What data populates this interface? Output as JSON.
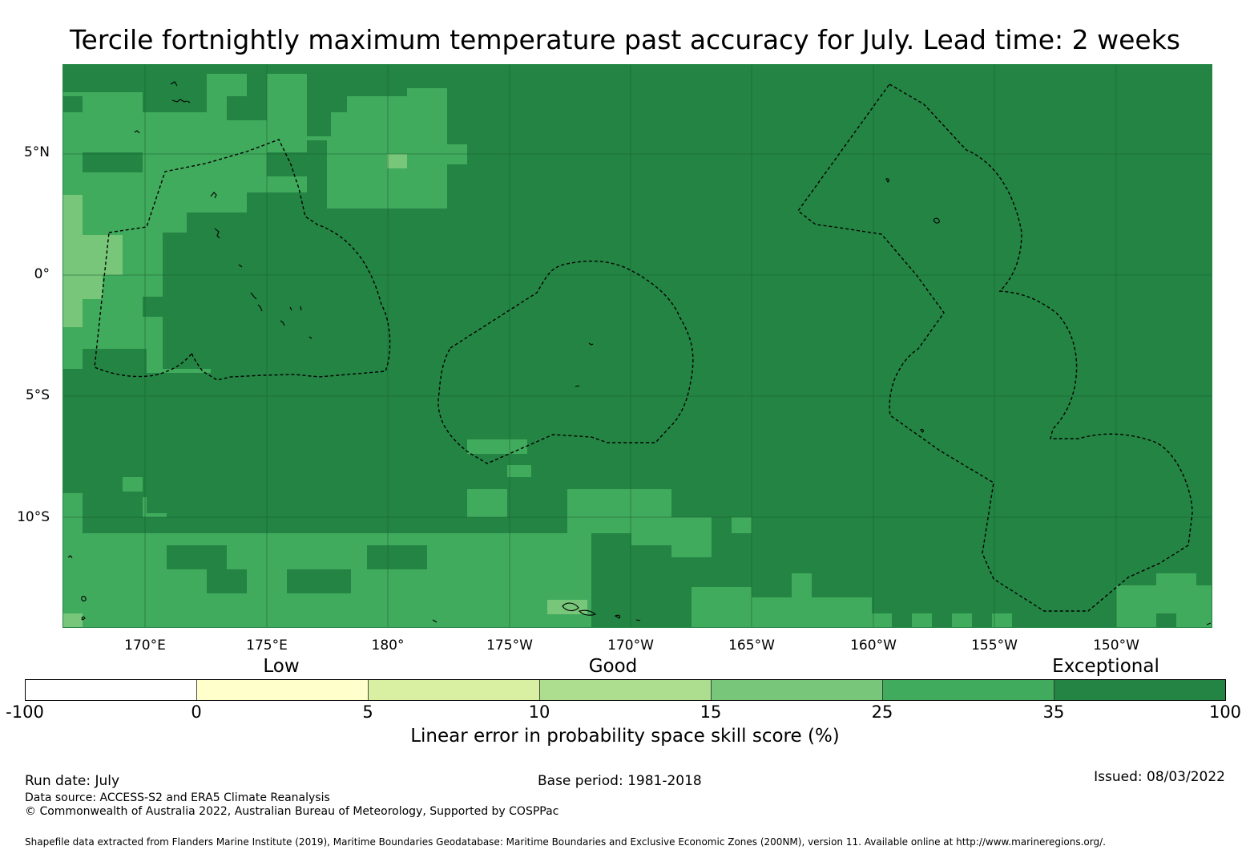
{
  "title": "Tercile fortnightly maximum temperature past accuracy for July. Lead time: 2 weeks",
  "map": {
    "latitude_labels": [
      "5°N",
      "0°",
      "5°S",
      "10°S"
    ],
    "longitude_labels": [
      "170°E",
      "175°E",
      "180°",
      "175°W",
      "170°W",
      "165°W",
      "160°W",
      "155°W",
      "150°W"
    ],
    "dominant_category": "35 to 100",
    "boundary_style": "dashed black EEZ outlines",
    "colors": {
      "exceptional_high": "#238443",
      "exceptional_low": "#41ab5d",
      "good_high": "#78c679",
      "good_low": "#addd8e",
      "low_high": "#d9f0a3",
      "low_low": "#ffffcc",
      "negative": "#ffffff"
    }
  },
  "legend": {
    "categories": [
      "Low",
      "Good",
      "Exceptional"
    ],
    "ticks": [
      "-100",
      "0",
      "5",
      "10",
      "15",
      "25",
      "35",
      "100"
    ],
    "colors": [
      "#ffffff",
      "#ffffcc",
      "#d9f0a3",
      "#addd8e",
      "#78c679",
      "#41ab5d",
      "#238443"
    ],
    "label": "Linear error in probability space skill score (%)"
  },
  "footer": {
    "run_date": "Run date: July",
    "base_period": "Base period: 1981-2018",
    "issued": "Issued: 08/03/2022",
    "data_source": "Data source: ACCESS-S2 and ERA5 Climate Reanalysis",
    "copyright": "© Commonwealth of Australia 2022, Australian Bureau of Meteorology, Supported by COSPPac",
    "shapefile": "Shapefile data extracted from Flanders Marine Institute (2019), Maritime Boundaries Geodatabase: Maritime Boundaries and Exclusive Economic Zones (200NM), version 11. Available online at http://www.marineregions.org/."
  }
}
